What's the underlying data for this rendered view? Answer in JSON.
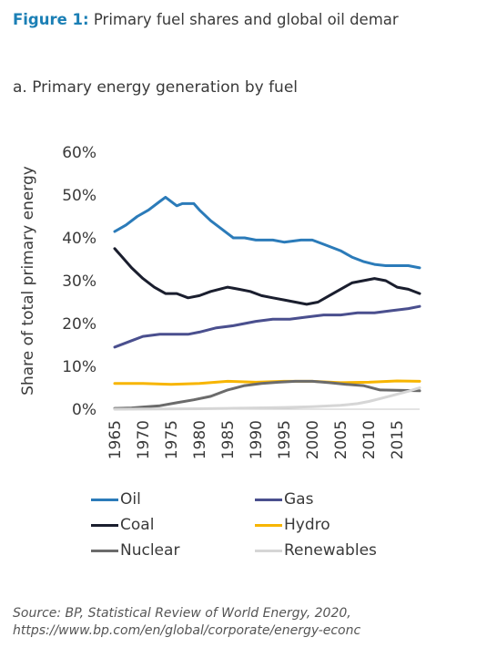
{
  "figure": {
    "label": "Figure 1:",
    "title": "Primary fuel shares and global oil demar",
    "subtitle": "a. Primary energy generation by fuel"
  },
  "chart_data": {
    "type": "line",
    "ylabel": "Share of total primary energy",
    "xlabel": "",
    "xlim": [
      1965,
      2019
    ],
    "ylim": [
      0,
      60
    ],
    "x_ticks": [
      1965,
      1970,
      1975,
      1980,
      1985,
      1990,
      1995,
      2000,
      2005,
      2010,
      2015
    ],
    "y_ticks": [
      "0%",
      "10%",
      "20%",
      "30%",
      "40%",
      "50%",
      "60%"
    ],
    "grid": false,
    "legend_position": "bottom",
    "series": [
      {
        "name": "Oil",
        "color": "#2b7bb9",
        "points": [
          [
            1965,
            41.5
          ],
          [
            1967,
            43
          ],
          [
            1969,
            45
          ],
          [
            1971,
            46.5
          ],
          [
            1973,
            48.5
          ],
          [
            1974,
            49.5
          ],
          [
            1976,
            47.5
          ],
          [
            1977,
            48
          ],
          [
            1979,
            48
          ],
          [
            1980,
            46.5
          ],
          [
            1982,
            44
          ],
          [
            1984,
            42
          ],
          [
            1986,
            40
          ],
          [
            1988,
            40
          ],
          [
            1990,
            39.5
          ],
          [
            1993,
            39.5
          ],
          [
            1995,
            39
          ],
          [
            1998,
            39.5
          ],
          [
            2000,
            39.5
          ],
          [
            2002,
            38.5
          ],
          [
            2005,
            37
          ],
          [
            2007,
            35.5
          ],
          [
            2009,
            34.5
          ],
          [
            2011,
            33.8
          ],
          [
            2013,
            33.5
          ],
          [
            2015,
            33.5
          ],
          [
            2017,
            33.5
          ],
          [
            2019,
            33
          ]
        ]
      },
      {
        "name": "Gas",
        "color": "#4a4f8e",
        "points": [
          [
            1965,
            14.5
          ],
          [
            1968,
            16
          ],
          [
            1970,
            17
          ],
          [
            1973,
            17.5
          ],
          [
            1976,
            17.5
          ],
          [
            1978,
            17.5
          ],
          [
            1980,
            18
          ],
          [
            1983,
            19
          ],
          [
            1986,
            19.5
          ],
          [
            1990,
            20.5
          ],
          [
            1993,
            21
          ],
          [
            1996,
            21
          ],
          [
            1999,
            21.5
          ],
          [
            2002,
            22
          ],
          [
            2005,
            22
          ],
          [
            2008,
            22.5
          ],
          [
            2011,
            22.5
          ],
          [
            2014,
            23
          ],
          [
            2017,
            23.5
          ],
          [
            2019,
            24
          ]
        ]
      },
      {
        "name": "Coal",
        "color": "#1a1e2e",
        "points": [
          [
            1965,
            37.5
          ],
          [
            1966,
            36
          ],
          [
            1968,
            33
          ],
          [
            1970,
            30.5
          ],
          [
            1972,
            28.5
          ],
          [
            1974,
            27
          ],
          [
            1976,
            27
          ],
          [
            1978,
            26
          ],
          [
            1980,
            26.5
          ],
          [
            1982,
            27.5
          ],
          [
            1985,
            28.5
          ],
          [
            1987,
            28
          ],
          [
            1989,
            27.5
          ],
          [
            1991,
            26.5
          ],
          [
            1993,
            26
          ],
          [
            1995,
            25.5
          ],
          [
            1997,
            25
          ],
          [
            1999,
            24.5
          ],
          [
            2001,
            25
          ],
          [
            2003,
            26.5
          ],
          [
            2005,
            28
          ],
          [
            2007,
            29.5
          ],
          [
            2009,
            30
          ],
          [
            2011,
            30.5
          ],
          [
            2013,
            30
          ],
          [
            2015,
            28.5
          ],
          [
            2017,
            28
          ],
          [
            2019,
            27
          ]
        ]
      },
      {
        "name": "Hydro",
        "color": "#f7b500",
        "points": [
          [
            1965,
            6
          ],
          [
            1970,
            6
          ],
          [
            1975,
            5.8
          ],
          [
            1980,
            6
          ],
          [
            1985,
            6.5
          ],
          [
            1990,
            6.3
          ],
          [
            1995,
            6.5
          ],
          [
            2000,
            6.5
          ],
          [
            2005,
            6.2
          ],
          [
            2010,
            6.3
          ],
          [
            2015,
            6.6
          ],
          [
            2019,
            6.5
          ]
        ]
      },
      {
        "name": "Nuclear",
        "color": "#6b6b6b",
        "points": [
          [
            1965,
            0.2
          ],
          [
            1968,
            0.3
          ],
          [
            1970,
            0.5
          ],
          [
            1973,
            0.8
          ],
          [
            1976,
            1.5
          ],
          [
            1979,
            2.2
          ],
          [
            1982,
            3
          ],
          [
            1985,
            4.5
          ],
          [
            1988,
            5.5
          ],
          [
            1991,
            6
          ],
          [
            1994,
            6.3
          ],
          [
            1997,
            6.5
          ],
          [
            2000,
            6.5
          ],
          [
            2003,
            6.2
          ],
          [
            2006,
            5.8
          ],
          [
            2009,
            5.5
          ],
          [
            2012,
            4.5
          ],
          [
            2015,
            4.4
          ],
          [
            2019,
            4.3
          ]
        ]
      },
      {
        "name": "Renewables",
        "color": "#d6d6d6",
        "points": [
          [
            1965,
            0
          ],
          [
            1980,
            0.1
          ],
          [
            1985,
            0.2
          ],
          [
            1990,
            0.3
          ],
          [
            1995,
            0.4
          ],
          [
            2000,
            0.6
          ],
          [
            2005,
            0.9
          ],
          [
            2008,
            1.3
          ],
          [
            2010,
            1.8
          ],
          [
            2013,
            2.8
          ],
          [
            2015,
            3.5
          ],
          [
            2017,
            4.2
          ],
          [
            2019,
            5
          ]
        ]
      }
    ]
  },
  "source": {
    "line1": "Source: BP, Statistical Review of World Energy, 2020,",
    "line2": "https://www.bp.com/en/global/corporate/energy-econc"
  }
}
